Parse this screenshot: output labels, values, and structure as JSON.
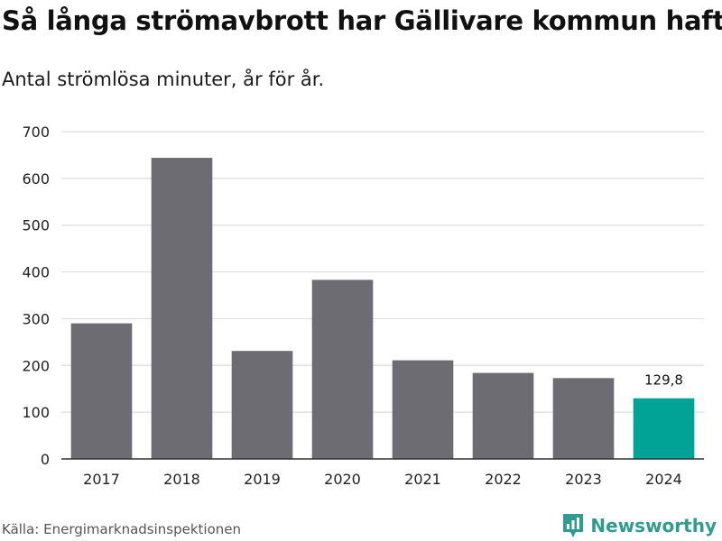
{
  "header": {
    "title": "Så långa strömavbrott har Gällivare kommun haft",
    "subtitle": "Antal strömlösa minuter, år för år."
  },
  "footer": {
    "source": "Källa: Energimarknadsinspektionen",
    "brand": "Newsworthy",
    "brand_icon": "bar-chart-logo-icon"
  },
  "colors": {
    "bar": "#6d6c72",
    "highlight": "#00a396",
    "grid": "#dddddd",
    "axis": "#333333",
    "brand": "#2f9c8f"
  },
  "chart_data": {
    "type": "bar",
    "title": "Så långa strömavbrott har Gällivare kommun haft",
    "subtitle": "Antal strömlösa minuter, år för år.",
    "xlabel": "",
    "ylabel": "",
    "categories": [
      "2017",
      "2018",
      "2019",
      "2020",
      "2021",
      "2022",
      "2023",
      "2024"
    ],
    "values": [
      290,
      644,
      231,
      383,
      211,
      184,
      173,
      129.8
    ],
    "highlight_index": 7,
    "annotations": [
      {
        "category": "2024",
        "text": "129,8"
      }
    ],
    "ylim": [
      0,
      700
    ],
    "yticks": [
      0,
      100,
      200,
      300,
      400,
      500,
      600,
      700
    ],
    "ytick_labels": [
      "0",
      "100",
      "200",
      "300",
      "400",
      "500",
      "600",
      "700"
    ],
    "grid": true,
    "legend": "none"
  }
}
